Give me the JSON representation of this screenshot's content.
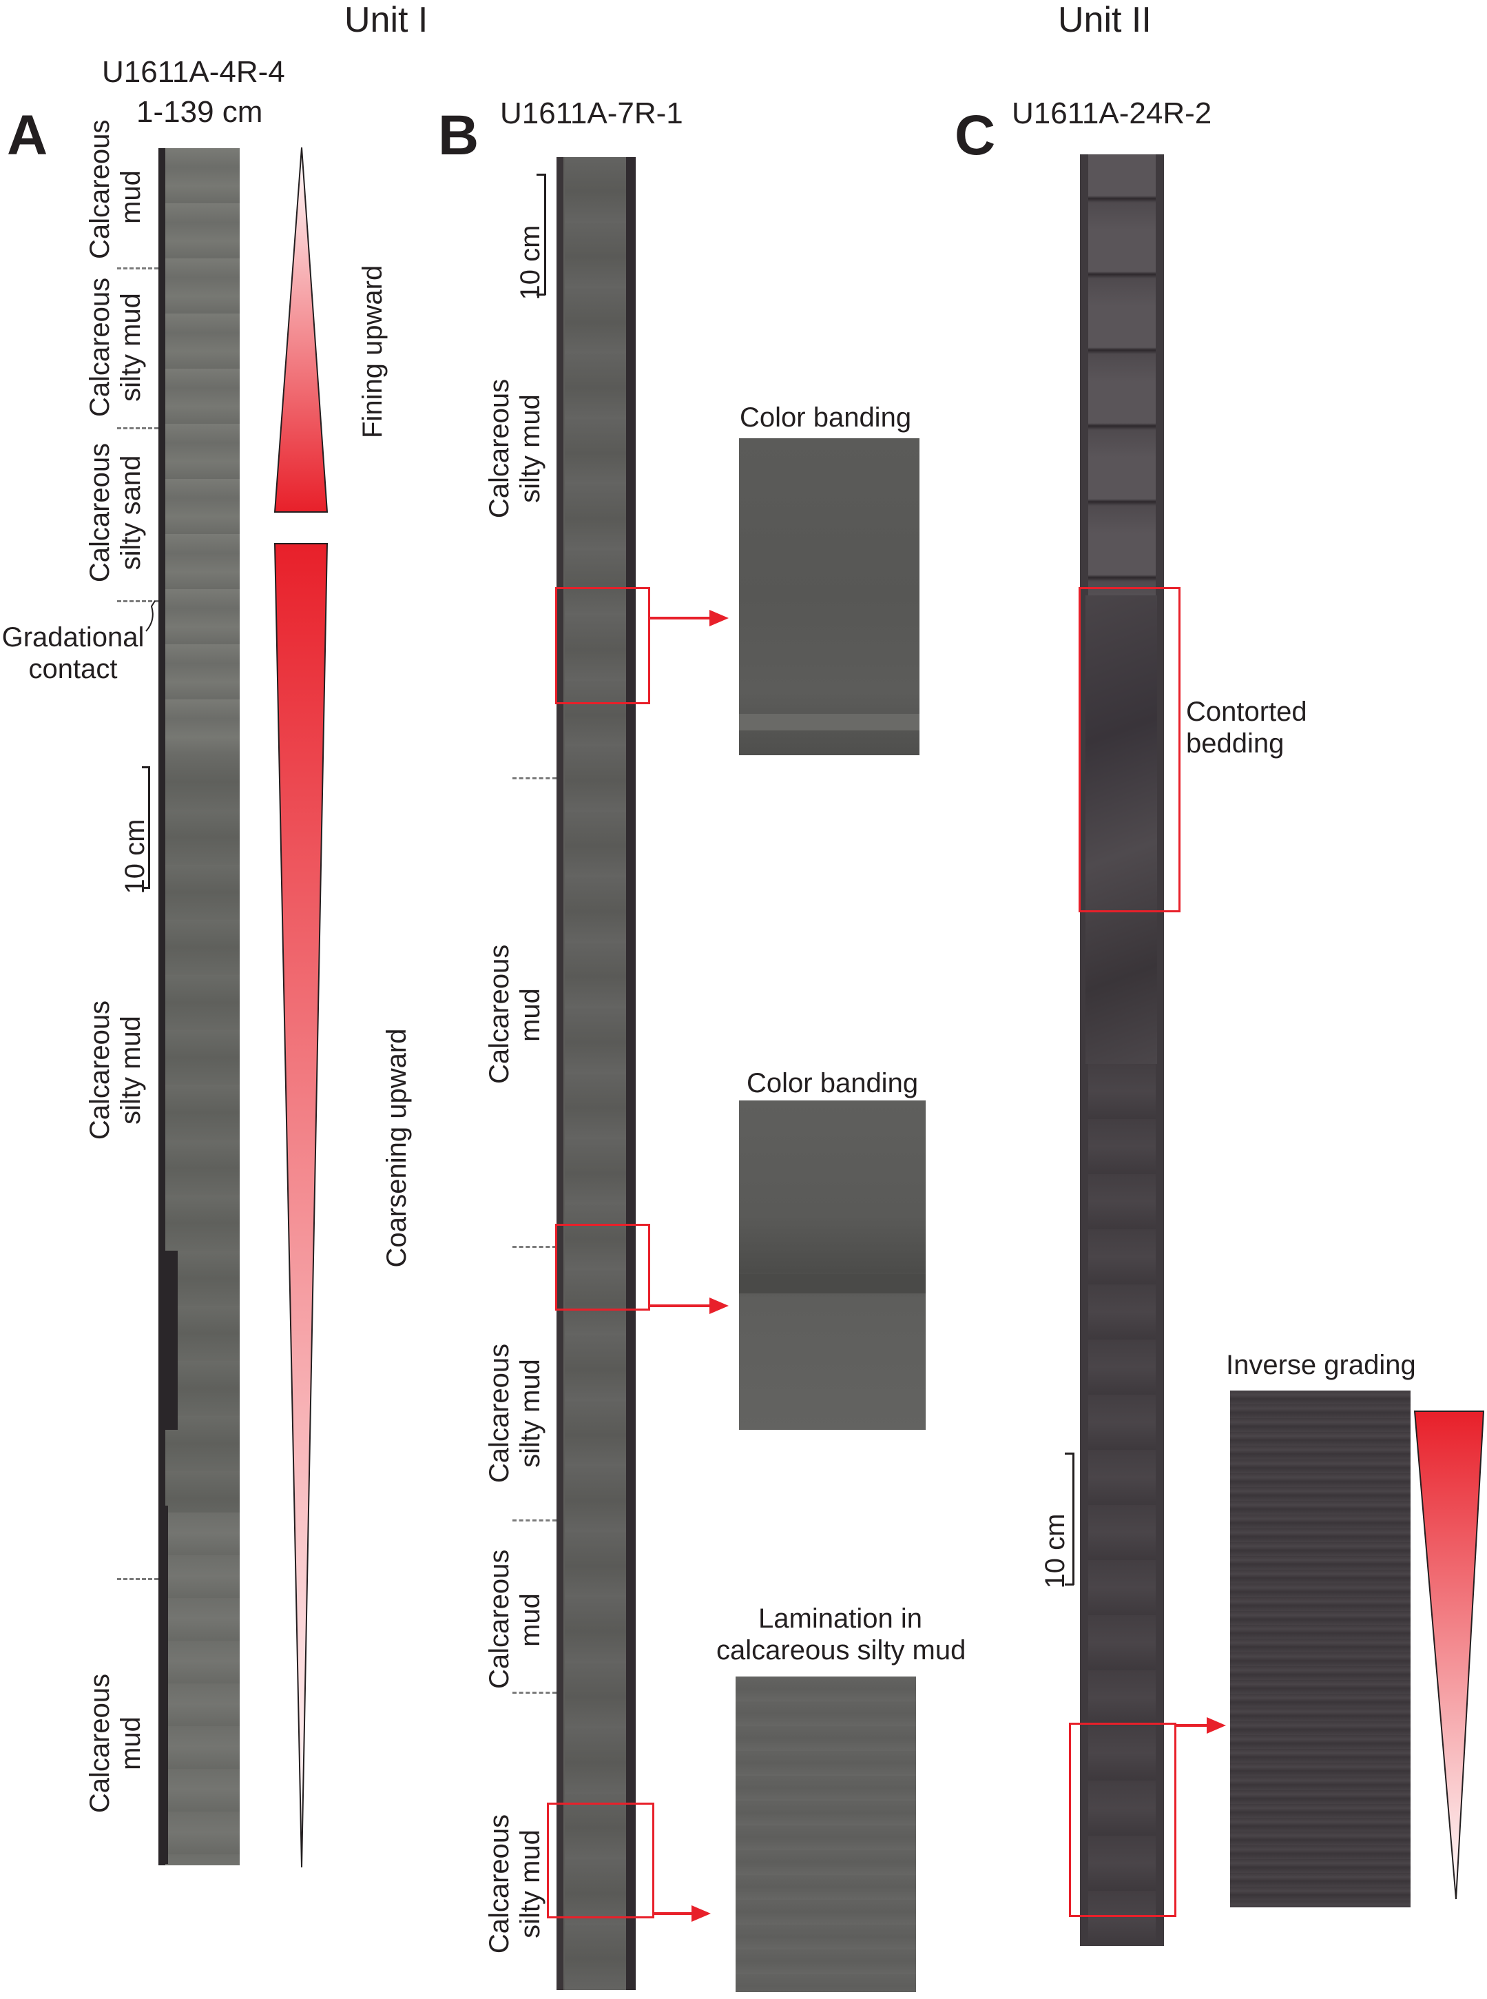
{
  "units": {
    "left": "Unit I",
    "right": "Unit II"
  },
  "panels": {
    "a": {
      "letter": "A",
      "core_id_line1": "U1611A-4R-4",
      "core_id_line2": "1-139 cm",
      "lithologies": [
        "Calcareous mud",
        "Calcareous silty mud",
        "Calcareous silty sand",
        "Calcareous silty mud",
        "Calcareous mud"
      ],
      "lith_lines": [
        [
          "Calcareous",
          "mud"
        ],
        [
          "Calcareous",
          "silty mud"
        ],
        [
          "Calcareous",
          "silty sand"
        ],
        [
          "Calcareous",
          "silty mud"
        ],
        [
          "Calcareous",
          "mud"
        ]
      ],
      "contact_label_line1": "Gradational",
      "contact_label_line2": "contact",
      "scale_label": "10 cm",
      "trend_upper": "Fining upward",
      "trend_lower": "Coarsening upward"
    },
    "b": {
      "letter": "B",
      "core_id": "U1611A-7R-1",
      "scale_label": "10 cm",
      "lith_lines": [
        [
          "Calcareous",
          "silty mud"
        ],
        [
          "Calcareous",
          "mud"
        ],
        [
          "Calcareous",
          "silty mud"
        ],
        [
          "Calcareous",
          "mud"
        ],
        [
          "Calcareous",
          "silty mud"
        ]
      ],
      "insets": [
        {
          "title": "Color banding"
        },
        {
          "title": "Color banding"
        },
        {
          "title_line1": "Lamination in",
          "title_line2": "calcareous silty mud"
        }
      ]
    },
    "c": {
      "letter": "C",
      "core_id": "U1611A-24R-2",
      "scale_label": "10 cm",
      "feature_line1": "Contorted",
      "feature_line2": "bedding",
      "inset_title": "Inverse grading"
    }
  },
  "colors": {
    "accent_red": "#e8202a",
    "core_gray_light": "#6f6f6b",
    "core_gray_dark": "#3b383b"
  }
}
